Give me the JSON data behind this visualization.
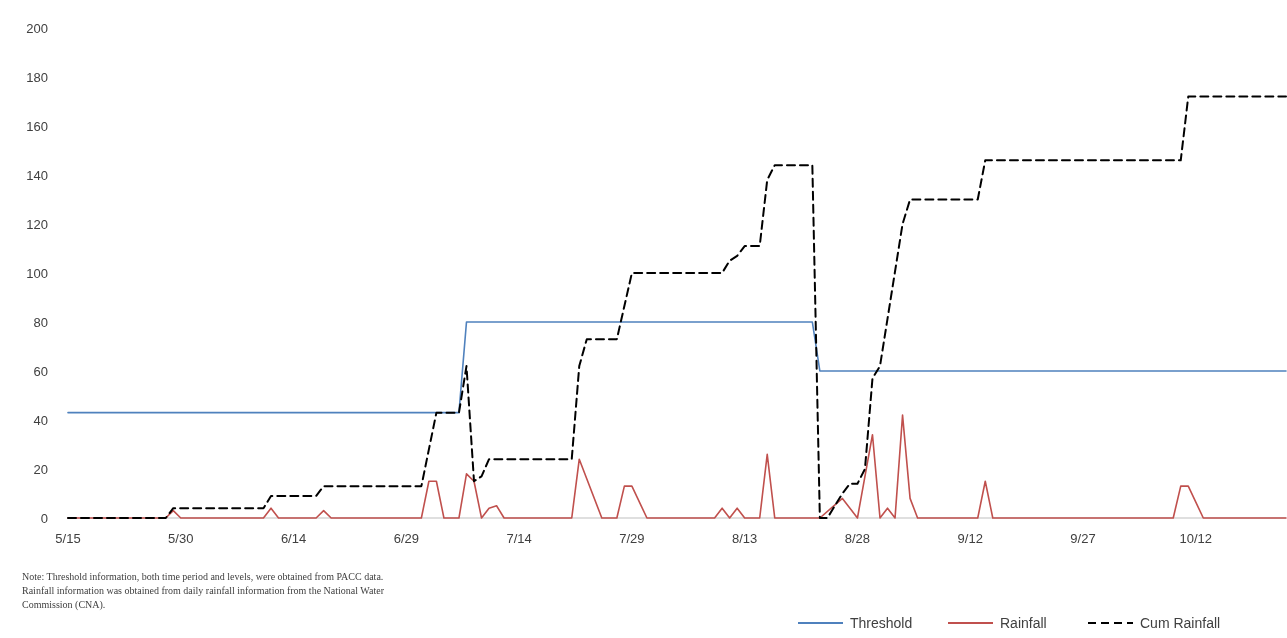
{
  "chart_data": {
    "type": "line",
    "xlim": [
      "--05-15",
      "--10-24"
    ],
    "xticks": [
      {
        "value": "--05-15",
        "label": "5/15"
      },
      {
        "value": "--05-30",
        "label": "5/30"
      },
      {
        "value": "--06-14",
        "label": "6/14"
      },
      {
        "value": "--06-29",
        "label": "6/29"
      },
      {
        "value": "--07-14",
        "label": "7/14"
      },
      {
        "value": "--07-29",
        "label": "7/29"
      },
      {
        "value": "--08-13",
        "label": "8/13"
      },
      {
        "value": "--08-28",
        "label": "8/28"
      },
      {
        "value": "--09-12",
        "label": "9/12"
      },
      {
        "value": "--09-27",
        "label": "9/27"
      },
      {
        "value": "--10-12",
        "label": "10/12"
      }
    ],
    "ylim": [
      0,
      200
    ],
    "yticks": [
      0,
      20,
      40,
      60,
      80,
      100,
      120,
      140,
      160,
      180,
      200
    ],
    "grid": false,
    "legend": "bottom right",
    "annotations": [
      "Note: Threshold information, both time period and levels, were obtained from PACC data. Rainfall information was obtained from daily rainfall information from the National Water Commission (CNA)."
    ],
    "series": [
      {
        "name": "Threshold",
        "color": "#4f81bd",
        "line_style": "solid",
        "x": [
          "--05-15",
          "--07-06",
          "--07-07",
          "--08-22",
          "--08-23",
          "--10-24"
        ],
        "values": [
          43,
          43,
          80,
          80,
          60,
          60
        ]
      },
      {
        "name": "Rainfall",
        "color": "#c0504d",
        "line_style": "solid",
        "x": [
          "--05-15",
          "--05-28",
          "--05-29",
          "--05-30",
          "--06-10",
          "--06-11",
          "--06-12",
          "--06-17",
          "--06-18",
          "--06-19",
          "--07-01",
          "--07-02",
          "--07-03",
          "--07-04",
          "--07-06",
          "--07-07",
          "--07-08",
          "--07-09",
          "--07-10",
          "--07-11",
          "--07-12",
          "--07-21",
          "--07-22",
          "--07-25",
          "--07-27",
          "--07-28",
          "--07-29",
          "--07-31",
          "--08-09",
          "--08-10",
          "--08-11",
          "--08-12",
          "--08-13",
          "--08-14",
          "--08-15",
          "--08-16",
          "--08-17",
          "--08-23",
          "--08-26",
          "--08-28",
          "--08-30",
          "--08-31",
          "--09-01",
          "--09-02",
          "--09-03",
          "--09-04",
          "--09-05",
          "--09-13",
          "--09-14",
          "--09-15",
          "--10-09",
          "--10-10",
          "--10-11",
          "--10-13",
          "--10-24"
        ],
        "values": [
          0,
          0,
          3,
          0,
          0,
          4,
          0,
          0,
          3,
          0,
          0,
          15,
          15,
          0,
          0,
          18,
          15,
          0,
          4,
          5,
          0,
          0,
          24,
          0,
          0,
          13,
          13,
          0,
          0,
          4,
          0,
          4,
          0,
          0,
          0,
          26,
          0,
          0,
          8,
          0,
          34,
          0,
          4,
          0,
          42,
          8,
          0,
          0,
          15,
          0,
          0,
          13,
          13,
          0,
          0
        ]
      },
      {
        "name": "Cum Rainfall",
        "color": "#000000",
        "line_style": "dashed",
        "x": [
          "--05-15",
          "--05-28",
          "--05-29",
          "--06-10",
          "--06-11",
          "--06-17",
          "--06-18",
          "--07-01",
          "--07-03",
          "--07-06",
          "--07-07",
          "--07-08",
          "--07-09",
          "--07-10",
          "--07-21",
          "--07-22",
          "--07-23",
          "--07-27",
          "--07-29",
          "--08-10",
          "--08-11",
          "--08-12",
          "--08-13",
          "--08-15",
          "--08-16",
          "--08-17",
          "--08-22",
          "--08-23",
          "--08-24",
          "--08-26",
          "--08-27",
          "--08-28",
          "--08-29",
          "--08-30",
          "--08-31",
          "--09-03",
          "--09-04",
          "--09-13",
          "--09-14",
          "--10-10",
          "--10-11",
          "--10-24"
        ],
        "values": [
          0,
          0,
          4,
          4,
          9,
          9,
          13,
          13,
          43,
          43,
          62,
          15,
          17,
          24,
          24,
          62,
          73,
          73,
          100,
          100,
          105,
          107,
          111,
          111,
          138,
          144,
          144,
          0,
          0,
          10,
          14,
          14,
          20,
          57,
          62,
          120,
          130,
          130,
          146,
          146,
          172,
          172
        ]
      }
    ]
  }
}
